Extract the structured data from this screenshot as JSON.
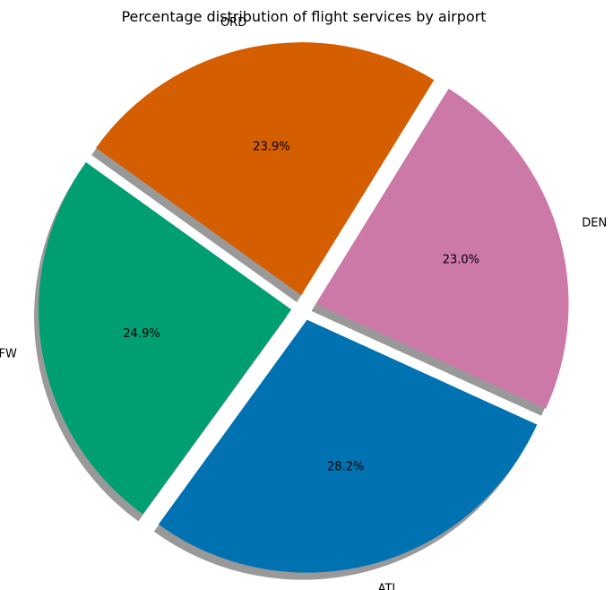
{
  "chart_data": {
    "type": "pie",
    "title": "Percentage distribution of flight services by airport",
    "categories": [
      "ATL",
      "DEN",
      "ORD",
      "DFW"
    ],
    "values": [
      28.2,
      23.0,
      23.9,
      24.9
    ],
    "percent_labels": [
      "28.2%",
      "23.0%",
      "23.9%",
      "24.9%"
    ],
    "colors": [
      "#0072B2",
      "#CC79A7",
      "#D55E00",
      "#009E73"
    ],
    "exploded": true,
    "shadow": true,
    "start_direction": "counterclockwise from upper-left",
    "legend": "none"
  }
}
